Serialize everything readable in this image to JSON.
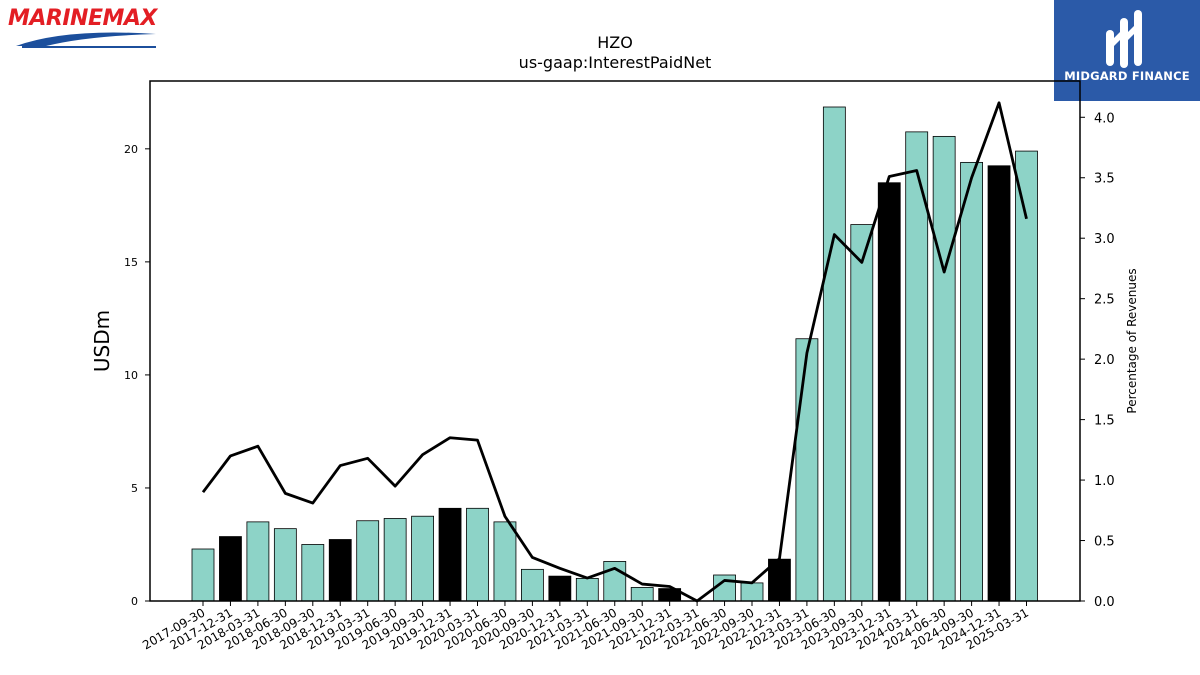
{
  "branding": {
    "left_logo_text": "MARINEMAX",
    "right_logo_text": "MIDGARD FINANCE",
    "left_logo_red": "#e31e24",
    "left_logo_blue": "#1c4f9c",
    "right_logo_bg": "#2b5aa8"
  },
  "chart_data": {
    "type": "bar",
    "title": "HZO",
    "subtitle": "us-gaap:InterestPaidNet",
    "ylabel": "USDm",
    "ylabel_right": "Percentage of Revenues",
    "ylim": [
      0,
      23
    ],
    "ylim_right": [
      0,
      4.3
    ],
    "yticks": [
      0,
      5,
      10,
      15,
      20
    ],
    "yticks_right": [
      0.0,
      0.5,
      1.0,
      1.5,
      2.0,
      2.5,
      3.0,
      3.5,
      4.0
    ],
    "grid": false,
    "categories": [
      "2017-09-30",
      "2017-12-31",
      "2018-03-31",
      "2018-06-30",
      "2018-09-30",
      "2018-12-31",
      "2019-03-31",
      "2019-06-30",
      "2019-09-30",
      "2019-12-31",
      "2020-03-31",
      "2020-06-30",
      "2020-09-30",
      "2020-12-31",
      "2021-03-31",
      "2021-06-30",
      "2021-09-30",
      "2021-12-31",
      "2022-03-31",
      "2022-06-30",
      "2022-09-30",
      "2022-12-31",
      "2023-03-31",
      "2023-06-30",
      "2023-09-30",
      "2023-12-31",
      "2024-03-31",
      "2024-06-30",
      "2024-09-30",
      "2024-12-31",
      "2025-03-31"
    ],
    "values": [
      2.3,
      2.85,
      3.5,
      3.2,
      2.5,
      2.72,
      3.55,
      3.65,
      3.75,
      4.1,
      4.1,
      3.5,
      1.4,
      1.1,
      1.0,
      1.75,
      0.6,
      0.55,
      0.0,
      1.15,
      0.8,
      1.85,
      11.6,
      21.85,
      16.65,
      18.5,
      20.75,
      20.55,
      19.4,
      19.25,
      19.9
    ],
    "highlight": [
      false,
      true,
      false,
      false,
      false,
      true,
      false,
      false,
      false,
      true,
      false,
      false,
      false,
      true,
      false,
      false,
      false,
      true,
      false,
      false,
      false,
      true,
      false,
      false,
      false,
      true,
      false,
      false,
      false,
      true,
      false
    ],
    "line_values": [
      0.9,
      1.2,
      1.28,
      0.89,
      0.81,
      1.12,
      1.18,
      0.95,
      1.21,
      1.35,
      1.33,
      0.7,
      0.36,
      0.27,
      0.19,
      0.27,
      0.14,
      0.12,
      0.0,
      0.17,
      0.15,
      0.35,
      2.05,
      3.03,
      2.8,
      3.51,
      3.56,
      2.72,
      3.5,
      4.12,
      3.16
    ],
    "colors": {
      "bar": "#8dd3c7",
      "bar_highlight": "#000000",
      "line": "#000000"
    }
  }
}
